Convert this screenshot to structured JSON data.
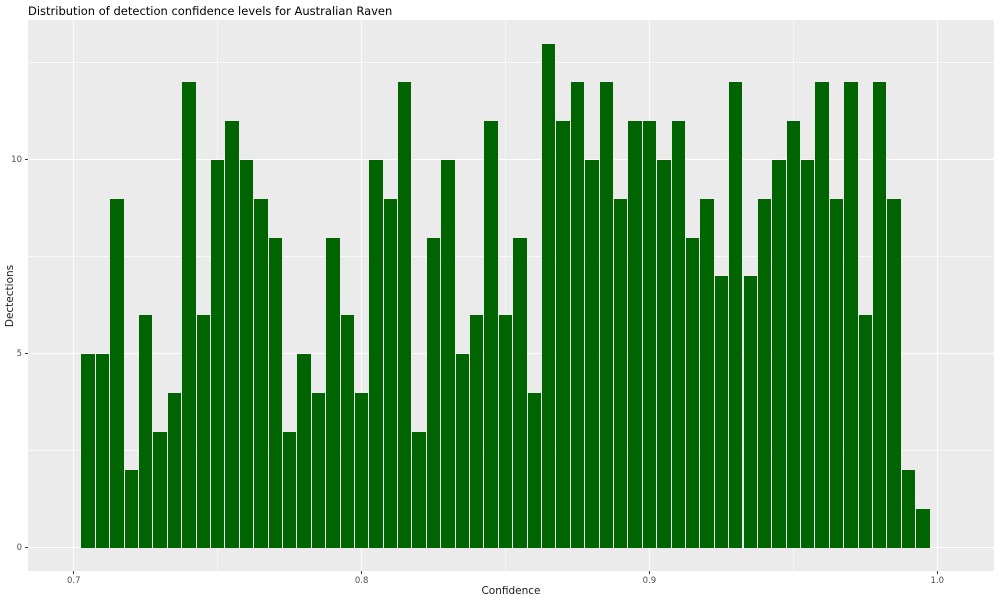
{
  "chart_data": {
    "type": "bar",
    "subtype": "histogram",
    "title": "Distribution of detection confidence levels for Australian Raven",
    "xlabel": "Confidence",
    "ylabel": "Dectections",
    "bin_start": 0.7025,
    "bin_width": 0.005,
    "n_bins": 59,
    "counts": [
      5,
      5,
      9,
      2,
      6,
      3,
      4,
      12,
      6,
      10,
      11,
      10,
      9,
      8,
      3,
      5,
      4,
      8,
      6,
      4,
      10,
      9,
      12,
      3,
      8,
      10,
      5,
      6,
      11,
      6,
      8,
      4,
      13,
      11,
      12,
      10,
      12,
      9,
      11,
      11,
      10,
      11,
      8,
      9,
      7,
      12,
      7,
      9,
      10,
      11,
      10,
      12,
      9,
      12,
      6,
      12,
      9,
      2,
      1
    ],
    "x_ticks_major": [
      0.7,
      0.8,
      0.9,
      1.0
    ],
    "x_tick_labels": [
      "0.7",
      "0.8",
      "0.9",
      "1.0"
    ],
    "x_ticks_minor": [
      0.75,
      0.85,
      0.95
    ],
    "y_ticks_major": [
      0,
      5,
      10
    ],
    "y_tick_labels": [
      "0",
      "5",
      "10"
    ],
    "y_ticks_minor": [
      2.5,
      7.5,
      12.5
    ],
    "xlim": [
      0.6841,
      1.0197
    ],
    "ylim": [
      -0.593,
      13.608
    ],
    "grid": "on",
    "legend": "none",
    "colors": {
      "bar_fill": "#006400",
      "panel_bg": "#ebebeb",
      "grid_major": "#ffffff",
      "grid_minor": "rgba(255,255,255,0.65)",
      "tick_mark": "#333333",
      "tick_text": "#4d4d4d",
      "axis_title_text": "#1a1a1a",
      "title_text": "#000000"
    }
  }
}
